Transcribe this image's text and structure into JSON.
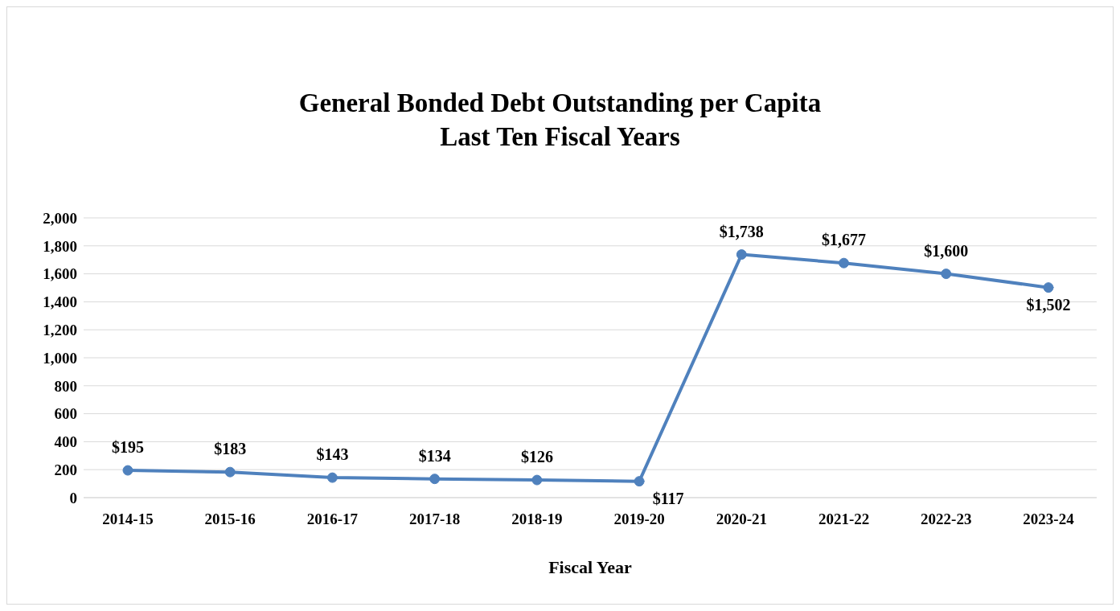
{
  "chart_data": {
    "type": "line",
    "title": "General Bonded Debt Outstanding per Capita\nLast Ten Fiscal Years",
    "xlabel": "Fiscal Year",
    "categories": [
      "2014-15",
      "2015-16",
      "2016-17",
      "2017-18",
      "2018-19",
      "2019-20",
      "2020-21",
      "2021-22",
      "2022-23",
      "2023-24"
    ],
    "series": [
      {
        "color": "#4f81bd",
        "values": [
          195,
          183,
          143,
          134,
          126,
          117,
          1738,
          1677,
          1600,
          1502
        ],
        "value_labels": [
          "$195",
          "$183",
          "$143",
          "$134",
          "$126",
          "$117",
          "$1,738",
          "$1,677",
          "$1,600",
          "$1,502"
        ]
      }
    ],
    "ylim": [
      0,
      2000
    ],
    "yticks": [
      {
        "value": 0,
        "label": "0"
      },
      {
        "value": 200,
        "label": "200"
      },
      {
        "value": 400,
        "label": "400"
      },
      {
        "value": 600,
        "label": "600"
      },
      {
        "value": 800,
        "label": "800"
      },
      {
        "value": 1000,
        "label": "1,000"
      },
      {
        "value": 1200,
        "label": "1,200"
      },
      {
        "value": 1400,
        "label": "1,400"
      },
      {
        "value": 1600,
        "label": "1,600"
      },
      {
        "value": 1800,
        "label": "1,800"
      },
      {
        "value": 2000,
        "label": "2,000"
      }
    ],
    "grid": "y",
    "legend": false,
    "marker": "circle",
    "line_style": "solid"
  }
}
